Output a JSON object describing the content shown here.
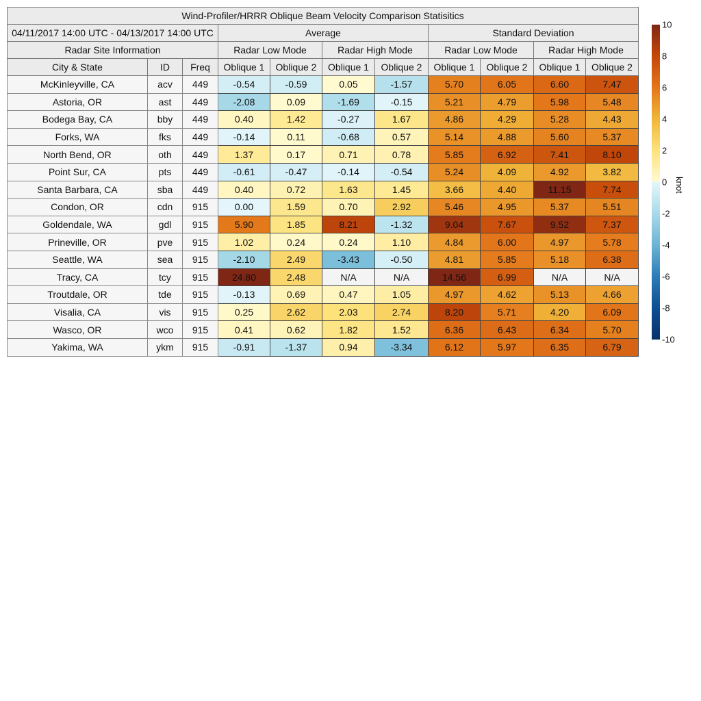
{
  "title": "Wind-Profiler/HRRR Oblique Beam Velocity Comparison Statisitics",
  "date_range": "04/11/2017 14:00 UTC - 04/13/2017 14:00 UTC",
  "groups": {
    "average": "Average",
    "std": "Standard Deviation"
  },
  "site_info": "Radar Site Information",
  "modes": [
    "Radar Low Mode",
    "Radar High Mode",
    "Radar Low Mode",
    "Radar High Mode"
  ],
  "columns": {
    "city": "City & State",
    "id": "ID",
    "freq": "Freq",
    "obliques": [
      "Oblique 1",
      "Oblique 2",
      "Oblique 1",
      "Oblique 2",
      "Oblique 1",
      "Oblique 2",
      "Oblique 1",
      "Oblique 2"
    ]
  },
  "rows": [
    {
      "city": "McKinleyville, CA",
      "id": "acv",
      "freq": "449",
      "values": [
        "-0.54",
        "-0.59",
        "0.05",
        "-1.57",
        "5.70",
        "6.05",
        "6.60",
        "7.47"
      ]
    },
    {
      "city": "Astoria, OR",
      "id": "ast",
      "freq": "449",
      "values": [
        "-2.08",
        "0.09",
        "-1.69",
        "-0.15",
        "5.21",
        "4.79",
        "5.98",
        "5.48"
      ]
    },
    {
      "city": "Bodega Bay, CA",
      "id": "bby",
      "freq": "449",
      "values": [
        "0.40",
        "1.42",
        "-0.27",
        "1.67",
        "4.86",
        "4.29",
        "5.28",
        "4.43"
      ]
    },
    {
      "city": "Forks, WA",
      "id": "fks",
      "freq": "449",
      "values": [
        "-0.14",
        "0.11",
        "-0.68",
        "0.57",
        "5.14",
        "4.88",
        "5.60",
        "5.37"
      ]
    },
    {
      "city": "North Bend, OR",
      "id": "oth",
      "freq": "449",
      "values": [
        "1.37",
        "0.17",
        "0.71",
        "0.78",
        "5.85",
        "6.92",
        "7.41",
        "8.10"
      ]
    },
    {
      "city": "Point Sur, CA",
      "id": "pts",
      "freq": "449",
      "values": [
        "-0.61",
        "-0.47",
        "-0.14",
        "-0.54",
        "5.24",
        "4.09",
        "4.92",
        "3.82"
      ]
    },
    {
      "city": "Santa Barbara, CA",
      "id": "sba",
      "freq": "449",
      "values": [
        "0.40",
        "0.72",
        "1.63",
        "1.45",
        "3.66",
        "4.40",
        "11.15",
        "7.74"
      ]
    },
    {
      "city": "Condon, OR",
      "id": "cdn",
      "freq": "915",
      "values": [
        "0.00",
        "1.59",
        "0.70",
        "2.92",
        "5.46",
        "4.95",
        "5.37",
        "5.51"
      ]
    },
    {
      "city": "Goldendale, WA",
      "id": "gdl",
      "freq": "915",
      "values": [
        "5.90",
        "1.85",
        "8.21",
        "-1.32",
        "9.04",
        "7.67",
        "9.52",
        "7.37"
      ]
    },
    {
      "city": "Prineville, OR",
      "id": "pve",
      "freq": "915",
      "values": [
        "1.02",
        "0.24",
        "0.24",
        "1.10",
        "4.84",
        "6.00",
        "4.97",
        "5.78"
      ]
    },
    {
      "city": "Seattle, WA",
      "id": "sea",
      "freq": "915",
      "values": [
        "-2.10",
        "2.49",
        "-3.43",
        "-0.50",
        "4.81",
        "5.85",
        "5.18",
        "6.38"
      ]
    },
    {
      "city": "Tracy, CA",
      "id": "tcy",
      "freq": "915",
      "values": [
        "24.80",
        "2.48",
        "N/A",
        "N/A",
        "14.56",
        "6.99",
        "N/A",
        "N/A"
      ]
    },
    {
      "city": "Troutdale, OR",
      "id": "tde",
      "freq": "915",
      "values": [
        "-0.13",
        "0.69",
        "0.47",
        "1.05",
        "4.97",
        "4.62",
        "5.13",
        "4.66"
      ]
    },
    {
      "city": "Visalia, CA",
      "id": "vis",
      "freq": "915",
      "values": [
        "0.25",
        "2.62",
        "2.03",
        "2.74",
        "8.20",
        "5.71",
        "4.20",
        "6.09"
      ]
    },
    {
      "city": "Wasco, OR",
      "id": "wco",
      "freq": "915",
      "values": [
        "0.41",
        "0.62",
        "1.82",
        "1.52",
        "6.36",
        "6.43",
        "6.34",
        "5.70"
      ]
    },
    {
      "city": "Yakima, WA",
      "id": "ykm",
      "freq": "915",
      "values": [
        "-0.91",
        "-1.37",
        "0.94",
        "-3.34",
        "6.12",
        "5.97",
        "6.35",
        "6.79"
      ]
    }
  ],
  "colorbar": {
    "unit": "knot",
    "ticks": [
      "10",
      "8",
      "6",
      "4",
      "2",
      "0",
      "-2",
      "-4",
      "-6",
      "-8",
      "-10"
    ],
    "range": [
      -10,
      10
    ],
    "stops": [
      [
        -10,
        "#08306b"
      ],
      [
        -8,
        "#0d4f93"
      ],
      [
        -6,
        "#2c7bb6"
      ],
      [
        -4,
        "#6bb4d6"
      ],
      [
        -2,
        "#a8dae8"
      ],
      [
        0,
        "#e4f6fb"
      ],
      [
        0.01,
        "#fffbd2"
      ],
      [
        2,
        "#fde27c"
      ],
      [
        4,
        "#f1b63b"
      ],
      [
        6,
        "#e3761a"
      ],
      [
        8,
        "#c4480a"
      ],
      [
        10,
        "#7f2614"
      ]
    ]
  }
}
